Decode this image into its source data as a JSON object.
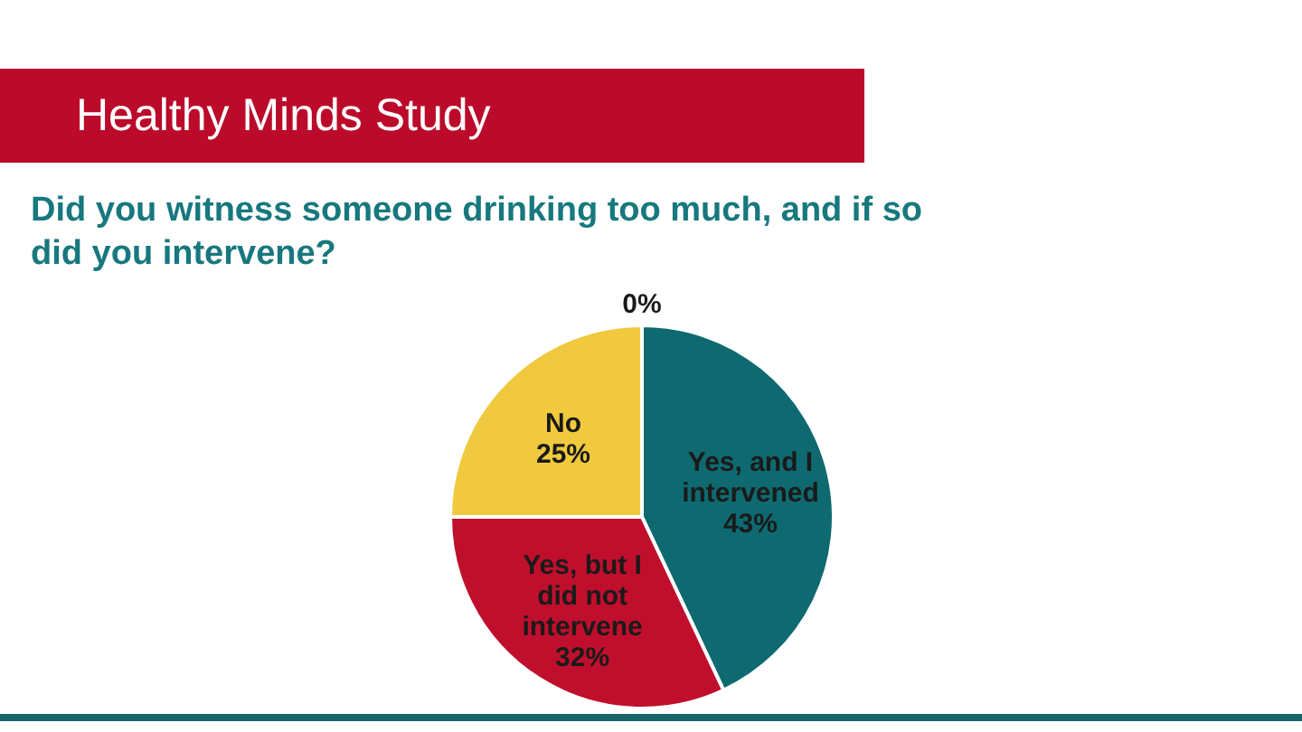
{
  "chart_data": {
    "type": "pie",
    "title": "Healthy Minds Study",
    "subtitle": "Did you witness someone drinking too much, and if so did you intervene?",
    "categories": [
      null,
      "Yes, and I intervened",
      "Yes, but I did not intervene",
      "No"
    ],
    "values": [
      0,
      43,
      32,
      25
    ],
    "colors": [
      "#8c8c8c",
      "#0e6a70",
      "#c00f2c",
      "#f0c93e"
    ],
    "value_labels": [
      "0%",
      "43%",
      "32%",
      "25%"
    ]
  }
}
